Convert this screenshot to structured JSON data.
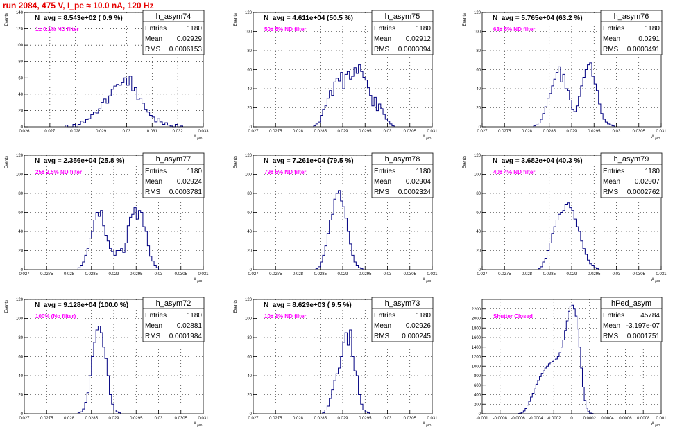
{
  "title": "run 2084,   475 V, I_pe ≈ 10.0 nA, 120 Hz",
  "colors": {
    "title": "#e60000",
    "annotation": "#ff00ff",
    "histogram": "#000080",
    "grid": "#000000"
  },
  "stats_labels": {
    "entries": "Entries",
    "mean": "Mean",
    "rms": "RMS"
  },
  "chart_data": [
    {
      "type": "bar",
      "name": "h_asym74",
      "nav": "N_avg = 8.543e+02 ( 0.9 %)",
      "note": "1± 0.1% ND filter",
      "entries": "1180",
      "mean": "0.02929",
      "rms": "0.0006153",
      "xlabel": "A_{μID}",
      "ylabel": "Events",
      "xlim": [
        0.026,
        0.033
      ],
      "ylim": [
        0,
        140
      ],
      "xticks": [
        "0.026",
        "0.027",
        "0.028",
        "0.029",
        "0.03",
        "0.031",
        "0.032",
        "0.033"
      ],
      "yticks": [
        "0",
        "20",
        "40",
        "60",
        "80",
        "100",
        "120",
        "140"
      ],
      "bins": {
        "start": 0.0276,
        "width": 0.0001,
        "counts": [
          2,
          0,
          0,
          3,
          0,
          3,
          7,
          5,
          9,
          10,
          15,
          18,
          17,
          22,
          30,
          34,
          29,
          38,
          46,
          50,
          52,
          51,
          54,
          60,
          51,
          62,
          44,
          48,
          33,
          35,
          29,
          21,
          18,
          14,
          12,
          6,
          10,
          6,
          3,
          5,
          2,
          1,
          0,
          3,
          0,
          1
        ]
      }
    },
    {
      "type": "bar",
      "name": "h_asym75",
      "nav": "N_avg = 4.611e+04 (50.5 %)",
      "note": "50± 5% ND filter",
      "entries": "1180",
      "mean": "0.02912",
      "rms": "0.0003094",
      "xlabel": "A_{μID}",
      "ylabel": "Events",
      "xlim": [
        0.027,
        0.031
      ],
      "ylim": [
        0,
        120
      ],
      "xticks": [
        "0.027",
        "0.0275",
        "0.028",
        "0.0285",
        "0.029",
        "0.0295",
        "0.03",
        "0.0305",
        "0.031"
      ],
      "yticks": [
        "0",
        "20",
        "40",
        "60",
        "80",
        "100",
        "120"
      ],
      "bins": {
        "start": 0.02835,
        "width": 5e-05,
        "counts": [
          1,
          3,
          5,
          12,
          18,
          22,
          30,
          38,
          33,
          47,
          51,
          48,
          57,
          40,
          55,
          58,
          50,
          53,
          62,
          56,
          65,
          58,
          52,
          49,
          41,
          33,
          22,
          31,
          17,
          24,
          19,
          13,
          8,
          6,
          3,
          1
        ]
      }
    },
    {
      "type": "bar",
      "name": "h_asym76",
      "nav": "N_avg = 5.765e+04 (63.2 %)",
      "note": "63± 5% ND filter",
      "entries": "1180",
      "mean": "0.0291",
      "rms": "0.0003491",
      "xlabel": "A_{μID}",
      "ylabel": "Events",
      "xlim": [
        0.027,
        0.031
      ],
      "ylim": [
        0,
        120
      ],
      "xticks": [
        "0.027",
        "0.0275",
        "0.028",
        "0.0285",
        "0.029",
        "0.0295",
        "0.03",
        "0.0305",
        "0.031"
      ],
      "yticks": [
        "0",
        "20",
        "40",
        "60",
        "80",
        "100",
        "120"
      ],
      "bins": {
        "start": 0.02815,
        "width": 5e-05,
        "counts": [
          1,
          2,
          4,
          8,
          14,
          21,
          30,
          35,
          43,
          50,
          57,
          63,
          47,
          55,
          40,
          38,
          28,
          18,
          16,
          22,
          32,
          43,
          52,
          60,
          65,
          67,
          53,
          45,
          38,
          24,
          14,
          8,
          5,
          3,
          2,
          1
        ]
      }
    },
    {
      "type": "bar",
      "name": "h_asym77",
      "nav": "N_avg = 2.356e+04 (25.8 %)",
      "note": "25± 2.5% ND filter",
      "entries": "1180",
      "mean": "0.02924",
      "rms": "0.0003781",
      "xlabel": "A_{μID}",
      "ylabel": "Events",
      "xlim": [
        0.027,
        0.031
      ],
      "ylim": [
        0,
        120
      ],
      "xticks": [
        "0.027",
        "0.0275",
        "0.028",
        "0.0285",
        "0.029",
        "0.0295",
        "0.03",
        "0.0305",
        "0.031"
      ],
      "yticks": [
        "0",
        "20",
        "40",
        "60",
        "80",
        "100",
        "120"
      ],
      "bins": {
        "start": 0.0282,
        "width": 5e-05,
        "counts": [
          2,
          4,
          8,
          15,
          22,
          33,
          40,
          52,
          60,
          56,
          62,
          46,
          36,
          30,
          22,
          19,
          15,
          20,
          20,
          22,
          18,
          28,
          46,
          55,
          58,
          65,
          53,
          62,
          60,
          45,
          40,
          25,
          14,
          9,
          4,
          2
        ]
      }
    },
    {
      "type": "bar",
      "name": "h_asym78",
      "nav": "N_avg = 7.261e+04 (79.5 %)",
      "note": "79± 5% ND filter",
      "entries": "1180",
      "mean": "0.02904",
      "rms": "0.0002324",
      "xlabel": "A_{μID}",
      "ylabel": "Events",
      "xlim": [
        0.027,
        0.031
      ],
      "ylim": [
        0,
        120
      ],
      "xticks": [
        "0.027",
        "0.0275",
        "0.028",
        "0.0285",
        "0.029",
        "0.0295",
        "0.03",
        "0.0305",
        "0.031"
      ],
      "yticks": [
        "0",
        "20",
        "40",
        "60",
        "80",
        "100",
        "120"
      ],
      "bins": {
        "start": 0.0284,
        "width": 5e-05,
        "counts": [
          1,
          3,
          8,
          15,
          25,
          38,
          52,
          58,
          74,
          80,
          83,
          72,
          66,
          54,
          40,
          27,
          15,
          8,
          4,
          2,
          1
        ]
      }
    },
    {
      "type": "bar",
      "name": "h_asym79",
      "nav": "N_avg = 3.682e+04 (40.3 %)",
      "note": "40± 4% ND filter",
      "entries": "1180",
      "mean": "0.02907",
      "rms": "0.0002762",
      "xlabel": "A_{μID}",
      "ylabel": "Events",
      "xlim": [
        0.027,
        0.031
      ],
      "ylim": [
        0,
        120
      ],
      "xticks": [
        "0.027",
        "0.0275",
        "0.028",
        "0.0285",
        "0.029",
        "0.0295",
        "0.03",
        "0.0305",
        "0.031"
      ],
      "yticks": [
        "0",
        "20",
        "40",
        "60",
        "80",
        "100",
        "120"
      ],
      "bins": {
        "start": 0.02825,
        "width": 5e-05,
        "counts": [
          1,
          3,
          8,
          12,
          20,
          28,
          38,
          45,
          52,
          58,
          60,
          62,
          68,
          70,
          65,
          62,
          53,
          45,
          40,
          30,
          22,
          16,
          10,
          6,
          4,
          2,
          1
        ]
      }
    },
    {
      "type": "bar",
      "name": "h_asym72",
      "nav": "N_avg = 9.128e+04 (100.0 %)",
      "note": "100% (No filter)",
      "entries": "1180",
      "mean": "0.02881",
      "rms": "0.0001984",
      "xlabel": "A_{μID}",
      "ylabel": "Events",
      "xlim": [
        0.027,
        0.031
      ],
      "ylim": [
        0,
        120
      ],
      "xticks": [
        "0.027",
        "0.0275",
        "0.028",
        "0.0285",
        "0.029",
        "0.0295",
        "0.03",
        "0.0305",
        "0.031"
      ],
      "yticks": [
        "0",
        "20",
        "40",
        "60",
        "80",
        "100",
        "120"
      ],
      "bins": {
        "start": 0.0282,
        "width": 5e-05,
        "counts": [
          1,
          2,
          5,
          12,
          22,
          40,
          60,
          75,
          88,
          92,
          85,
          70,
          58,
          40,
          20,
          10,
          4,
          2,
          1
        ]
      }
    },
    {
      "type": "bar",
      "name": "h_asym73",
      "nav": "N_avg = 8.629e+03 ( 9.5 %)",
      "note": "10± 1% ND filter",
      "entries": "1180",
      "mean": "0.02926",
      "rms": "0.000245",
      "xlabel": "A_{μID}",
      "ylabel": "Events",
      "xlim": [
        0.027,
        0.031
      ],
      "ylim": [
        0,
        120
      ],
      "xticks": [
        "0.027",
        "0.0275",
        "0.028",
        "0.0285",
        "0.029",
        "0.0295",
        "0.03",
        "0.0305",
        "0.031"
      ],
      "yticks": [
        "0",
        "20",
        "40",
        "60",
        "80",
        "100",
        "120"
      ],
      "bins": {
        "start": 0.02855,
        "width": 5e-05,
        "counts": [
          1,
          4,
          8,
          16,
          25,
          35,
          42,
          48,
          60,
          75,
          85,
          72,
          88,
          60,
          45,
          40,
          20,
          10,
          4,
          2,
          1
        ]
      }
    },
    {
      "type": "bar",
      "name": "hPed_asym",
      "nav": "",
      "note": "Shutter Closed",
      "entries": "45784",
      "mean": "-3.197e-07",
      "rms": "0.0001751",
      "xlabel": "A_{μID}",
      "ylabel": "",
      "xlim": [
        -0.001,
        0.001
      ],
      "ylim": [
        0,
        2400
      ],
      "xticks": [
        "-0.001",
        "-0.0008",
        "-0.0006",
        "-0.0004",
        "-0.0002",
        "0",
        "0.0002",
        "0.0004",
        "0.0006",
        "0.0008",
        "0.001"
      ],
      "yticks": [
        "0",
        "200",
        "400",
        "600",
        "800",
        "1000",
        "1200",
        "1400",
        "1600",
        "1800",
        "2000",
        "2200"
      ],
      "bins": {
        "start": -0.0006,
        "width": 2e-05,
        "counts": [
          5,
          15,
          30,
          60,
          110,
          180,
          260,
          350,
          430,
          520,
          620,
          700,
          780,
          850,
          900,
          960,
          1000,
          1050,
          1080,
          1100,
          1130,
          1150,
          1200,
          1280,
          1400,
          1550,
          1750,
          1950,
          2150,
          2260,
          2280,
          2200,
          2050,
          1780,
          1400,
          960,
          560,
          280,
          120,
          45,
          15,
          5
        ]
      }
    }
  ]
}
